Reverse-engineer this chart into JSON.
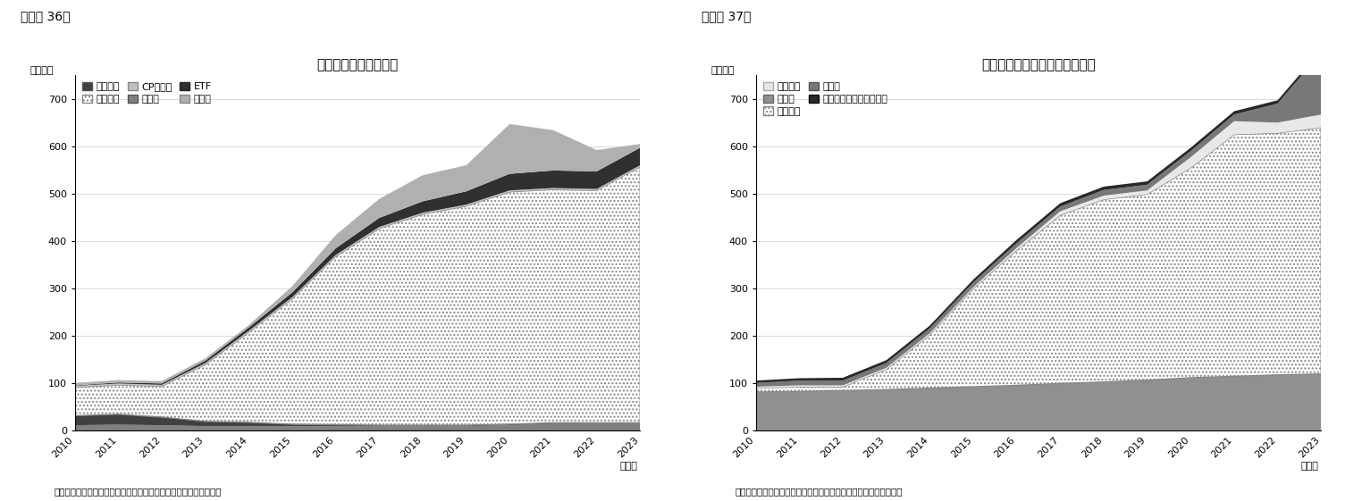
{
  "title36": "日銀の資産動向と内訳",
  "title37": "日銀の負債・純資産動向と内訳",
  "ylabel": "（兆円）",
  "caption36": "（注）月末時点　　（資料）日本銀行よりニッセイ基礎研究所作成",
  "caption37": "（注）月末時点　　（資料）日本銀行よりニッセイ基礎研究所作成",
  "header36": "（図表 36）",
  "header37": "（図表 37）",
  "nendo": "（年）",
  "years": [
    2010,
    2011,
    2012,
    2013,
    2014,
    2015,
    2016,
    2017,
    2018,
    2019,
    2020,
    2021,
    2022,
    2023
  ],
  "l36_short": "短期国債",
  "l36_long": "長期国債",
  "l36_cp": "CP・社債",
  "l36_other": "その他",
  "l36_etf": "ETF",
  "l36_loan": "貸出金",
  "l37_gov": "政府預金",
  "l37_bank": "銀行券",
  "l37_current": "当座預金",
  "l37_other": "その他",
  "l37_capital": "資本金・準備金・引当金",
  "chart36": {
    "short": [
      20,
      22,
      17,
      10,
      8,
      4,
      3,
      2,
      2,
      2,
      2,
      2,
      2,
      2
    ],
    "long": [
      60,
      62,
      65,
      120,
      190,
      265,
      355,
      415,
      445,
      462,
      490,
      492,
      490,
      540
    ],
    "cp": [
      3,
      3,
      3,
      3,
      3,
      3,
      3,
      3,
      3,
      3,
      3,
      3,
      3,
      3
    ],
    "other": [
      12,
      13,
      12,
      10,
      10,
      10,
      10,
      10,
      10,
      10,
      12,
      15,
      15,
      15
    ],
    "etf": [
      1,
      2,
      3,
      5,
      7,
      10,
      14,
      19,
      24,
      28,
      35,
      37,
      37,
      37
    ],
    "loan": [
      5,
      5,
      5,
      5,
      5,
      13,
      28,
      40,
      55,
      55,
      105,
      85,
      45,
      8
    ]
  },
  "chart37": {
    "bank": [
      82,
      83,
      85,
      87,
      90,
      93,
      96,
      100,
      103,
      107,
      112,
      115,
      118,
      120
    ],
    "current": [
      8,
      10,
      8,
      43,
      113,
      207,
      285,
      355,
      385,
      392,
      443,
      510,
      510,
      520
    ],
    "gov": [
      3,
      3,
      3,
      3,
      3,
      3,
      5,
      8,
      8,
      8,
      22,
      28,
      22,
      27
    ],
    "other": [
      8,
      10,
      10,
      10,
      10,
      10,
      10,
      10,
      12,
      12,
      13,
      14,
      40,
      130
    ],
    "capital": [
      5,
      5,
      6,
      6,
      6,
      6,
      7,
      7,
      7,
      7,
      7,
      7,
      7,
      7
    ]
  },
  "ylim": [
    0,
    750
  ],
  "yticks": [
    0,
    100,
    200,
    300,
    400,
    500,
    600,
    700
  ]
}
